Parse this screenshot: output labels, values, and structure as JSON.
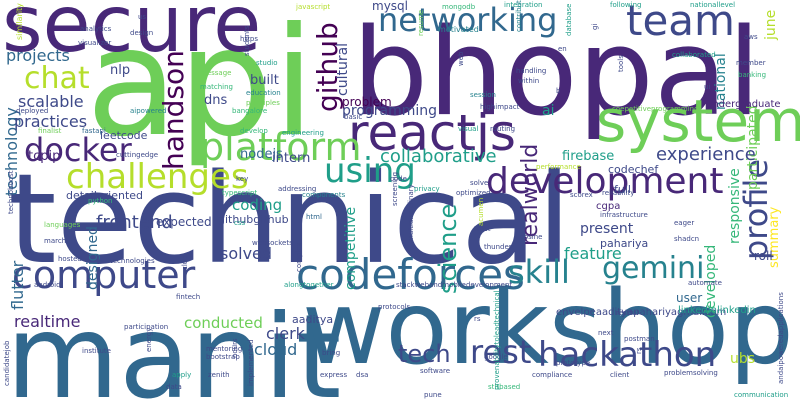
{
  "palette": [
    "#440154",
    "#482878",
    "#3e4989",
    "#31688e",
    "#26828e",
    "#1f9e89",
    "#35b779",
    "#6ece58",
    "#b5de2b",
    "#fde725"
  ],
  "words": {
    "technical": "technical",
    "manit": "manit",
    "api": "api",
    "bhopal": "bhopal",
    "workshop": "workshop",
    "secure": "secure",
    "system": "system",
    "reactjs": "reactjs",
    "team": "team",
    "networking": "networking",
    "development": "development",
    "codeforces": "codeforces",
    "computer": "computer",
    "platform": "platform",
    "challenges": "challenges",
    "hackathon": "hackathon",
    "docker": "docker",
    "using": "using",
    "skill": "skill",
    "rest": "rest",
    "tech": "tech",
    "gemini": "gemini",
    "chat": "chat",
    "profile": "profile",
    "science": "science",
    "handson": "handson",
    "github": "github",
    "realworld": "realworld",
    "collaborative": "collaborative",
    "experience": "experience",
    "projects": "projects",
    "scalable": "scalable",
    "practices": "practices",
    "technology": "technology",
    "frontend": "frontend",
    "flutter": "flutter",
    "coding": "coding",
    "solved": "solved",
    "designed": "designed",
    "cloud": "cloud",
    "clerk": "clerk",
    "conducted": "conducted",
    "realtime": "realtime",
    "feature": "feature",
    "responsive": "responsive",
    "participated": "participated",
    "developed": "developed",
    "national": "national",
    "june": "june",
    "firebase": "firebase",
    "programming": "programming",
    "mysql": "mysql",
    "cultural": "cultural",
    "nodejs": "nodejs",
    "intern": "intern",
    "dns": "dns",
    "built": "built",
    "nlp": "nlp",
    "tcpip": "tcpip",
    "problem": "problem",
    "competitive": "competitive",
    "ai": "ai",
    "present": "present",
    "pahariya": "pahariya",
    "user": "user",
    "ubs": "ubs",
    "aaditya": "aaditya",
    "expected": "expected",
    "githubgithub": "githubgithub",
    "detailoriented": "detailoriented",
    "leetcode": "leetcode",
    "envelpeaadityapahariyagmailcom": "envelpeaadityapahariyagmailcom",
    "linkedinlinkedin": "linkedinlinkedin",
    "undergraduate": "undergraduate",
    "summary": "summary",
    "full": "full",
    "codechef": "codechef",
    "bangalore": "bangalore",
    "motivated": "motivated",
    "integration": "integration",
    "following": "following",
    "nationallevel": "nationallevel",
    "javascript": "javascript",
    "mongodb": "mongodb",
    "studio": "studio",
    "education": "education",
    "principles": "principles",
    "matching": "matching",
    "message": "message",
    "handling": "handling",
    "within": "within",
    "collaborated": "collaborated",
    "coepetitiveprogramming": "coepetitiveprogramming",
    "member": "member",
    "banking": "banking",
    "tools": "tools",
    "visual": "visual",
    "routing": "routing",
    "basic": "basic",
    "session": "session",
    "highimpact": "highimpact",
    "finalist": "finalist",
    "aipowered": "aipowered",
    "cuttingedge": "cuttingedge",
    "fastapi": "fastapi",
    "python": "python",
    "typescript": "typescript",
    "components": "components",
    "html": "html",
    "css": "css",
    "websockets": "websockets",
    "technologies": "technologies",
    "android": "android",
    "hosted": "hosted",
    "march": "march",
    "languages": "languages",
    "alongtogether": "alongtogether",
    "stackwebandmobiledevelopment": "stackwebandmobiledevelopment",
    "privacy": "privacy",
    "optimized": "optimized",
    "solve": "solve",
    "trust": "trust",
    "cosine": "cosine",
    "infrastructure": "infrastructure",
    "eager": "eager",
    "scorex": "scorex",
    "reliability": "reliability",
    "cgpa": "cgpa",
    "roll": "roll",
    "prototype": "prototype",
    "compliance": "compliance",
    "client": "client",
    "problemsolving": "problemsolving",
    "communication": "communication",
    "bring": "bring",
    "express": "express",
    "mentoring": "mentoring",
    "bootstrap": "bootstrap",
    "zenith": "zenith",
    "data": "data",
    "apply": "apply",
    "institute": "institute",
    "participation": "participation",
    "fintech": "fintech",
    "complex": "complex",
    "multidisciplinary": "multidisciplinary",
    "protocols": "protocols",
    "next": "next",
    "restful": "restful",
    "automate": "automate",
    "pune": "pune",
    "google": "google",
    "software": "software",
    "andaipoweredapplications": "andaipoweredapplications",
    "addressing": "addressing",
    "engineering": "engineering",
    "develop": "develop",
    "deployed": "deployed",
    "design": "design",
    "https": "https",
    "visualizer": "visualizer",
    "analytics": "analytics",
    "similarity": "similarity",
    "students": "students",
    "resume": "resume",
    "database": "database",
    "contribute": "contribute",
    "web": "web",
    "aws": "aws",
    "ui": "ui",
    "en": "en",
    "us": "us",
    "gi": "gi",
    "key": "key",
    "screening": "screening",
    "code": "code",
    "performance": "performance",
    "acumen": "acumen",
    "thunder": "thunder",
    "shadcn": "shadcn",
    "candidatejob": "candidatejob",
    "energy": "energy",
    "technoboost": "technoboost",
    "stitbased": "stitbased",
    "hours": "hours",
    "club": "club",
    "implemented": "implemented",
    "provenabilitytoleadtechnical": "provenabilitytoleadtechnical",
    "dsa": "dsa",
    "b": "b",
    "rs": "rs",
    "postman": "postman",
    "rs2": "rs"
  }
}
